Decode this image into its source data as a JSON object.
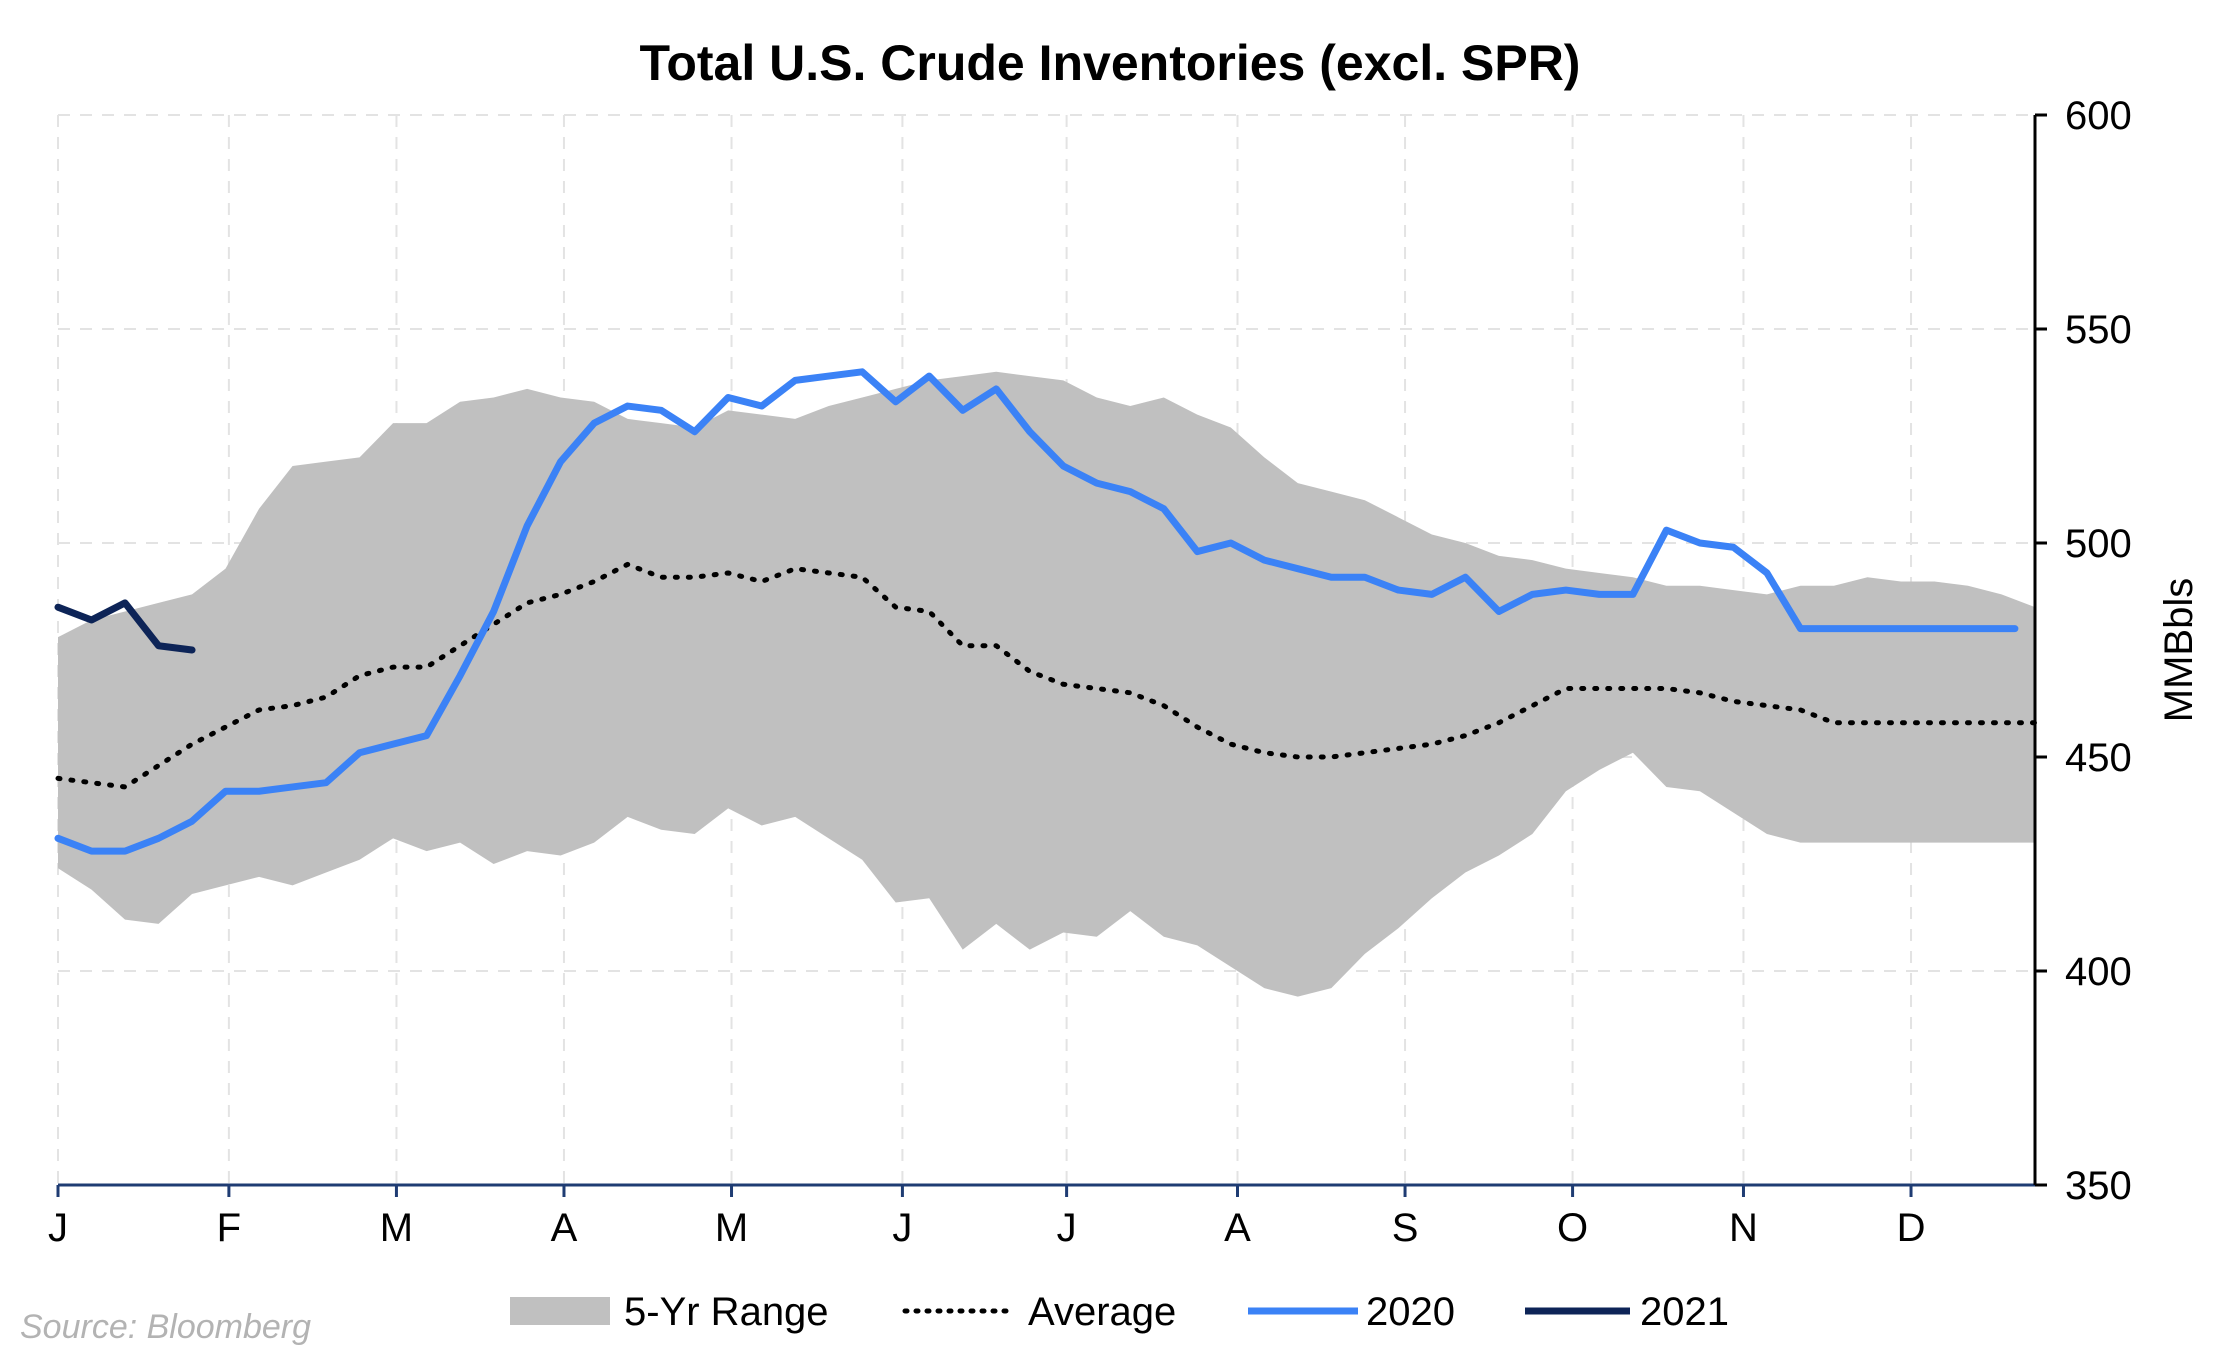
{
  "chart_data": {
    "type": "line",
    "title": "Total U.S. Crude Inventories (excl. SPR)",
    "ylabel": "MMBbls",
    "ylim": [
      350,
      600
    ],
    "yticks": [
      350,
      400,
      450,
      500,
      550,
      600
    ],
    "xlim": [
      0,
      59
    ],
    "x_tick_labels": [
      "J",
      "F",
      "M",
      "A",
      "M",
      "J",
      "J",
      "A",
      "S",
      "O",
      "N",
      "D"
    ],
    "x_tick_positions": [
      0,
      5.1,
      10.1,
      15.1,
      20.1,
      25.2,
      30.1,
      35.2,
      40.2,
      45.2,
      50.3,
      55.3
    ],
    "grid": true,
    "y_axis_side": "right",
    "legend_position": "bottom",
    "source": "Source: Bloomberg",
    "range_band": {
      "name": "5-Yr Range",
      "color": "#c0c0c0",
      "x": [
        0,
        1,
        2,
        3,
        4,
        5,
        6,
        7,
        8,
        9,
        10,
        11,
        12,
        13,
        14,
        15,
        16,
        17,
        18,
        19,
        20,
        21,
        22,
        23,
        24,
        25,
        26,
        27,
        28,
        29,
        30,
        31,
        32,
        33,
        34,
        35,
        36,
        37,
        38,
        39,
        40,
        41,
        42,
        43,
        44,
        45,
        46,
        47,
        48,
        49,
        50,
        51,
        52,
        53,
        54,
        55,
        56,
        57,
        58,
        59
      ],
      "upper": [
        478,
        482,
        484,
        486,
        488,
        494,
        508,
        518,
        519,
        520,
        528,
        528,
        533,
        534,
        536,
        534,
        533,
        529,
        528,
        527,
        531,
        530,
        529,
        532,
        534,
        536,
        538,
        539,
        540,
        539,
        538,
        534,
        532,
        534,
        530,
        527,
        520,
        514,
        512,
        510,
        506,
        502,
        500,
        497,
        496,
        494,
        493,
        492,
        490,
        490,
        489,
        488,
        490,
        490,
        492,
        491,
        491,
        490,
        488,
        485
      ],
      "lower": [
        424,
        419,
        412,
        411,
        418,
        420,
        422,
        420,
        423,
        426,
        431,
        428,
        430,
        425,
        428,
        427,
        430,
        436,
        433,
        432,
        438,
        434,
        436,
        431,
        426,
        416,
        417,
        405,
        411,
        405,
        409,
        408,
        414,
        408,
        406,
        401,
        396,
        394,
        396,
        404,
        410,
        417,
        423,
        427,
        432,
        442,
        447,
        451,
        443,
        442,
        437,
        432,
        430,
        430,
        430,
        430,
        430,
        430,
        430,
        430
      ]
    },
    "series": [
      {
        "name": "Average",
        "color": "#000000",
        "style": "dotted",
        "x": [
          0,
          1,
          2,
          3,
          4,
          5,
          6,
          7,
          8,
          9,
          10,
          11,
          12,
          13,
          14,
          15,
          16,
          17,
          18,
          19,
          20,
          21,
          22,
          23,
          24,
          25,
          26,
          27,
          28,
          29,
          30,
          31,
          32,
          33,
          34,
          35,
          36,
          37,
          38,
          39,
          40,
          41,
          42,
          43,
          44,
          45,
          46,
          47,
          48,
          49,
          50,
          51,
          52,
          53,
          54,
          55,
          56,
          57,
          58,
          59
        ],
        "y": [
          445,
          444,
          443,
          448,
          453,
          457,
          461,
          462,
          464,
          469,
          471,
          471,
          476,
          481,
          486,
          488,
          491,
          495,
          492,
          492,
          493,
          491,
          494,
          493,
          492,
          485,
          484,
          476,
          476,
          470,
          467,
          466,
          465,
          462,
          457,
          453,
          451,
          450,
          450,
          451,
          452,
          453,
          455,
          458,
          462,
          466,
          466,
          466,
          466,
          465,
          463,
          462,
          461,
          458,
          458,
          458,
          458,
          458,
          458,
          458
        ]
      },
      {
        "name": "2020",
        "color": "#3b82f6",
        "style": "solid",
        "x": [
          0,
          1,
          2,
          3,
          4,
          5,
          6,
          7,
          8,
          9,
          10,
          11,
          12,
          13,
          14,
          15,
          16,
          17,
          18,
          19,
          20,
          21,
          22,
          23,
          24,
          25,
          26,
          27,
          28,
          29,
          30,
          31,
          32,
          33,
          34,
          35,
          36,
          37,
          38,
          39,
          40,
          41,
          42,
          43,
          44,
          45,
          46,
          47,
          48,
          49,
          50,
          51,
          52,
          53,
          54,
          55,
          56,
          57,
          58,
          58.4
        ],
        "y": [
          431,
          428,
          428,
          431,
          435,
          442,
          442,
          443,
          444,
          451,
          453,
          455,
          469,
          484,
          504,
          519,
          528,
          532,
          531,
          526,
          534,
          532,
          538,
          539,
          540,
          533,
          539,
          531,
          536,
          526,
          518,
          514,
          512,
          508,
          498,
          500,
          496,
          494,
          492,
          492,
          489,
          488,
          492,
          484,
          488,
          489,
          488,
          488,
          503,
          500,
          499,
          493,
          480,
          480,
          480,
          480,
          480,
          480,
          480,
          480
        ]
      },
      {
        "name": "2021",
        "color": "#0d2457",
        "style": "solid",
        "x": [
          0,
          1,
          2,
          3,
          4
        ],
        "y": [
          485,
          482,
          486,
          476,
          475
        ]
      }
    ]
  }
}
